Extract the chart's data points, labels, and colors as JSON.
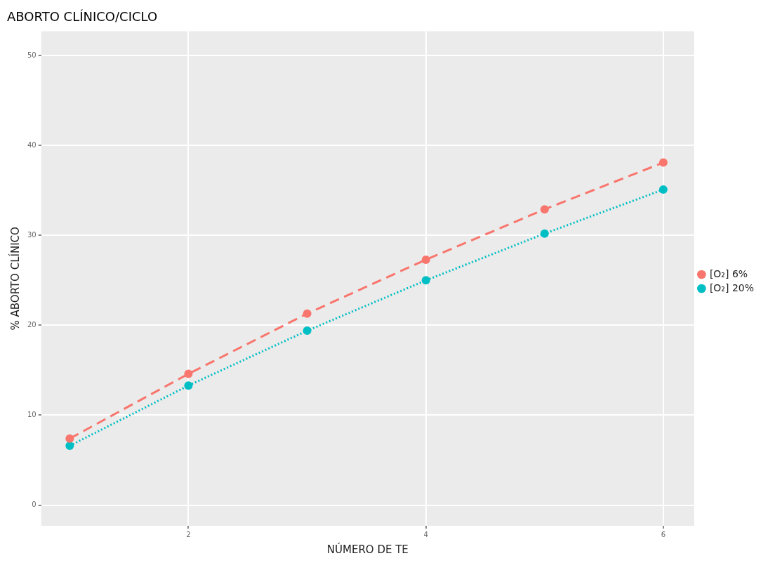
{
  "chart_data": {
    "type": "line",
    "title": "ABORTO CLÍNICO/CICLO",
    "xlabel": "NÚMERO DE TE",
    "ylabel": "% ABORTO CLÍNICO",
    "x": [
      1,
      2,
      3,
      4,
      5,
      6
    ],
    "xlim": [
      0.76,
      6.26
    ],
    "xticks": [
      2,
      4,
      6
    ],
    "ylim": [
      -2.3,
      52.7
    ],
    "yticks": [
      0,
      10,
      20,
      30,
      40,
      50
    ],
    "grid": true,
    "legend": "right",
    "marker": "circle",
    "series": [
      {
        "name": "[O₂] 6%",
        "color": "#f8766d",
        "line_style": "dashed",
        "values": [
          7.4,
          14.6,
          21.3,
          27.3,
          32.9,
          38.1
        ]
      },
      {
        "name": "[O₂] 20%",
        "color": "#00bfc4",
        "line_style": "dotted",
        "values": [
          6.6,
          13.3,
          19.4,
          25.0,
          30.2,
          35.1
        ]
      }
    ]
  }
}
